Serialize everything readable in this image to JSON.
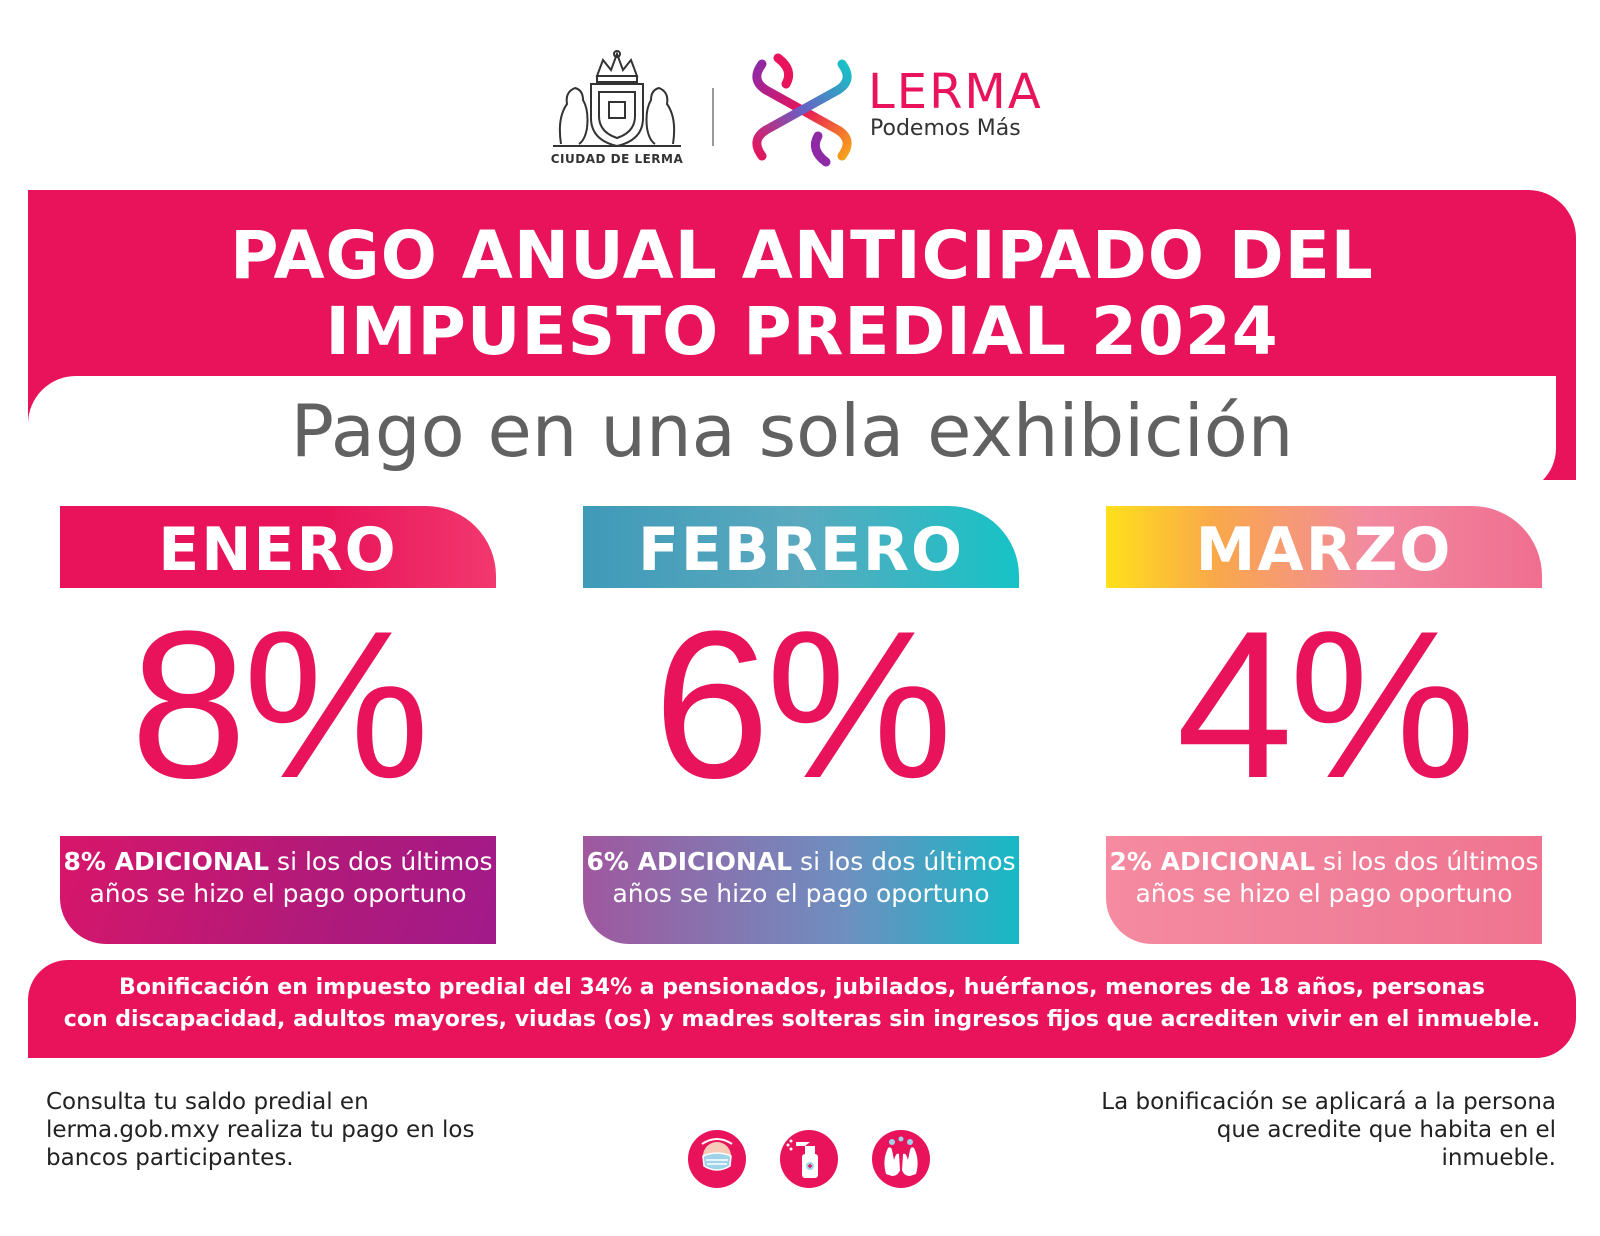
{
  "header": {
    "coat_caption": "CIUDAD DE LERMA",
    "brand_name": "LERMA",
    "brand_tagline": "Podemos Más"
  },
  "banner": {
    "title_line1": "PAGO ANUAL ANTICIPADO DEL",
    "title_line2": "IMPUESTO PREDIAL 2024",
    "subtitle": "Pago en una sola exhibición"
  },
  "months": [
    {
      "name": "ENERO",
      "discount": "8%",
      "note_bold": "8% ADICIONAL",
      "note_rest": " si los dos últimos años se hizo el pago oportuno"
    },
    {
      "name": "FEBRERO",
      "discount": "6%",
      "note_bold": "6% ADICIONAL",
      "note_rest": " si los dos últimos años se hizo el pago oportuno"
    },
    {
      "name": "MARZO",
      "discount": "4%",
      "note_bold": "2% ADICIONAL",
      "note_rest": " si los dos últimos años se hizo el pago oportuno"
    }
  ],
  "bonification": {
    "line1": "Bonificación en impuesto predial del 34% a pensionados, jubilados, huérfanos, menores de 18 años, personas",
    "line2": "con discapacidad, adultos mayores, viudas (os) y madres solteras sin ingresos fijos que acrediten vivir en el inmueble."
  },
  "footer": {
    "left_line1": "Consulta tu saldo predial en",
    "left_line2": "lerma.gob.mxy realiza tu pago en los",
    "left_line3": "bancos participantes.",
    "right_line1": "La bonificación se aplicará a la persona",
    "right_line2": "que acredite que habita en el",
    "right_line3": "inmueble."
  },
  "icons": [
    "face-mask-icon",
    "sanitizer-spray-icon",
    "hand-washing-icon"
  ],
  "colors": {
    "brand_pink": "#e8135a",
    "text_gray": "#616161",
    "teal": "#16c3c6",
    "yellow": "#ffe01b",
    "purple": "#a11a8a"
  }
}
